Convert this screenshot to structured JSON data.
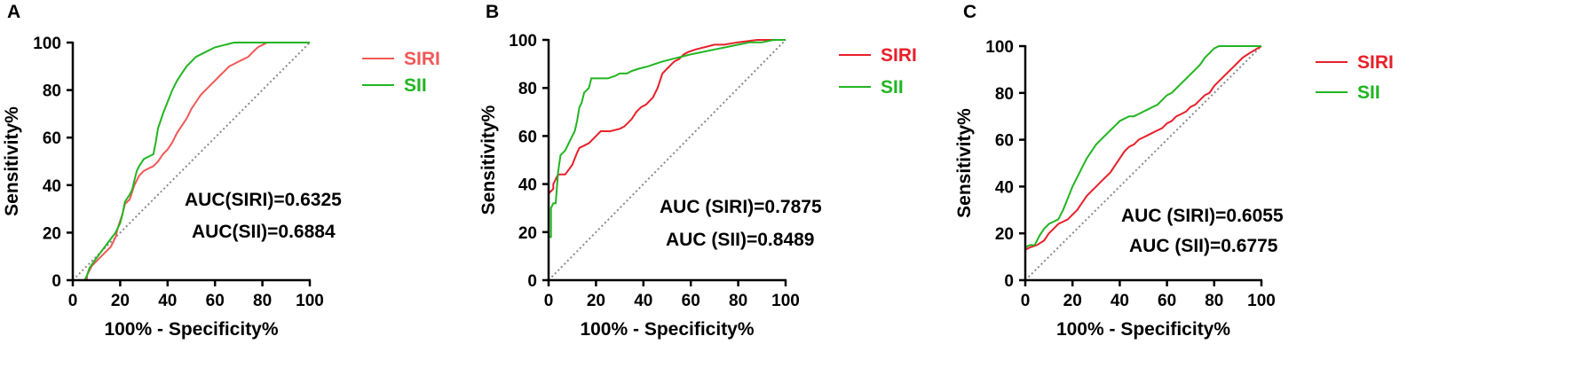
{
  "chart_data": [
    {
      "type": "line",
      "panel": "A",
      "xlabel": "100% - Specificity%",
      "ylabel": "Sensitivity%",
      "xlim": [
        0,
        100
      ],
      "ylim": [
        0,
        100
      ],
      "xticks": [
        0,
        20,
        40,
        60,
        80,
        100
      ],
      "yticks": [
        0,
        20,
        40,
        60,
        80,
        100
      ],
      "legend_position": "right",
      "reference_line": {
        "x": [
          0,
          100
        ],
        "y": [
          0,
          100
        ],
        "style": "dotted",
        "color": "#8a8a8a"
      },
      "series": [
        {
          "name": "SIRI",
          "color": "#f25757",
          "x": [
            0,
            6,
            6,
            7,
            8,
            10,
            12,
            14,
            16,
            18,
            19,
            20,
            21,
            22,
            24,
            25,
            26,
            28,
            30,
            32,
            34,
            36,
            38,
            40,
            42,
            44,
            46,
            48,
            50,
            52,
            54,
            56,
            58,
            60,
            62,
            64,
            66,
            68,
            70,
            72,
            74,
            76,
            78,
            80,
            82,
            84,
            100
          ],
          "y": [
            0,
            0,
            2,
            4,
            6,
            8,
            10,
            12,
            14,
            18,
            22,
            25,
            28,
            32,
            34,
            37,
            40,
            44,
            46,
            47,
            48,
            50,
            53,
            55,
            58,
            62,
            65,
            68,
            72,
            75,
            78,
            80,
            82,
            84,
            86,
            88,
            90,
            91,
            92,
            93,
            94,
            96,
            98,
            99,
            100,
            100,
            100
          ]
        },
        {
          "name": "SII",
          "color": "#22b522",
          "x": [
            0,
            5,
            6,
            7,
            9,
            12,
            15,
            18,
            20,
            21,
            22,
            24,
            25,
            26,
            27,
            28,
            30,
            32,
            34,
            35,
            36,
            38,
            40,
            42,
            44,
            46,
            48,
            50,
            52,
            54,
            56,
            58,
            60,
            64,
            68,
            72,
            80,
            100
          ],
          "y": [
            0,
            0,
            2,
            5,
            8,
            12,
            16,
            20,
            24,
            28,
            33,
            36,
            38,
            42,
            46,
            48,
            51,
            52,
            53,
            58,
            64,
            70,
            75,
            80,
            84,
            87,
            90,
            92,
            94,
            95,
            96,
            97,
            98,
            99,
            100,
            100,
            100,
            100
          ]
        }
      ],
      "annotations": [
        "AUC(SIRI)=0.6325",
        "AUC(SII)=0.6884"
      ]
    },
    {
      "type": "line",
      "panel": "B",
      "xlabel": "100% - Specificity%",
      "ylabel": "Sensitivity%",
      "xlim": [
        0,
        100
      ],
      "ylim": [
        0,
        100
      ],
      "xticks": [
        0,
        20,
        40,
        60,
        80,
        100
      ],
      "yticks": [
        0,
        20,
        40,
        60,
        80,
        100
      ],
      "legend_position": "right",
      "reference_line": {
        "x": [
          0,
          100
        ],
        "y": [
          0,
          100
        ],
        "style": "dotted",
        "color": "#8a8a8a"
      },
      "series": [
        {
          "name": "SIRI",
          "color": "#e8202a",
          "x": [
            0,
            0,
            2,
            2,
            4,
            7,
            10,
            12,
            13,
            15,
            17,
            20,
            22,
            26,
            30,
            32,
            35,
            37,
            39,
            41,
            44,
            46,
            48,
            50,
            52,
            53,
            55,
            57,
            59,
            62,
            66,
            70,
            74,
            80,
            88,
            100
          ],
          "y": [
            0,
            36,
            38,
            40,
            44,
            44,
            48,
            53,
            55,
            56,
            57,
            60,
            62,
            62,
            63,
            64,
            67,
            70,
            72,
            73,
            76,
            80,
            86,
            88,
            90,
            91,
            92,
            94,
            95,
            96,
            97,
            98,
            98,
            99,
            100,
            100
          ]
        },
        {
          "name": "SII",
          "color": "#22b522",
          "x": [
            0,
            0,
            1,
            1,
            2,
            3,
            4,
            5,
            6,
            7,
            9,
            11,
            12,
            13,
            14,
            15,
            17,
            18,
            20,
            22,
            25,
            28,
            30,
            33,
            35,
            38,
            42,
            45,
            48,
            52,
            56,
            60,
            65,
            70,
            75,
            80,
            85,
            90,
            95,
            100
          ],
          "y": [
            0,
            18,
            18,
            30,
            32,
            32,
            45,
            52,
            53,
            54,
            58,
            62,
            66,
            72,
            74,
            78,
            80,
            84,
            84,
            84,
            84,
            85,
            86,
            86,
            87,
            88,
            89,
            90,
            91,
            92,
            93,
            94,
            95,
            96,
            97,
            98,
            99,
            99,
            100,
            100
          ]
        }
      ],
      "annotations": [
        "AUC (SIRI)=0.7875",
        "AUC (SII)=0.8489"
      ]
    },
    {
      "type": "line",
      "panel": "C",
      "xlabel": "100% - Specificity%",
      "ylabel": "Sensitivity%",
      "xlim": [
        0,
        100
      ],
      "ylim": [
        0,
        100
      ],
      "xticks": [
        0,
        20,
        40,
        60,
        80,
        100
      ],
      "yticks": [
        0,
        20,
        40,
        60,
        80,
        100
      ],
      "legend_position": "right",
      "reference_line": {
        "x": [
          0,
          100
        ],
        "y": [
          0,
          100
        ],
        "style": "dotted",
        "color": "#8a8a8a"
      },
      "series": [
        {
          "name": "SIRI",
          "color": "#e8202a",
          "x": [
            0,
            0,
            2,
            5,
            8,
            10,
            12,
            14,
            16,
            18,
            20,
            22,
            24,
            26,
            28,
            30,
            32,
            34,
            36,
            38,
            40,
            42,
            44,
            46,
            48,
            50,
            52,
            54,
            56,
            58,
            60,
            62,
            64,
            66,
            68,
            70,
            72,
            74,
            76,
            78,
            80,
            82,
            84,
            86,
            88,
            90,
            92,
            95,
            100
          ],
          "y": [
            0,
            13,
            14,
            15,
            17,
            20,
            22,
            24,
            25,
            26,
            28,
            30,
            33,
            36,
            38,
            40,
            42,
            44,
            46,
            49,
            52,
            55,
            57,
            58,
            60,
            61,
            62,
            63,
            64,
            65,
            67,
            68,
            70,
            71,
            72,
            74,
            75,
            77,
            79,
            80,
            83,
            85,
            87,
            89,
            91,
            93,
            95,
            97,
            100
          ]
        },
        {
          "name": "SII",
          "color": "#22b522",
          "x": [
            0,
            0,
            2,
            4,
            6,
            8,
            10,
            12,
            14,
            16,
            18,
            20,
            22,
            24,
            26,
            28,
            30,
            32,
            34,
            36,
            38,
            40,
            42,
            44,
            46,
            48,
            50,
            52,
            54,
            56,
            58,
            60,
            62,
            64,
            66,
            68,
            70,
            72,
            74,
            76,
            78,
            80,
            82,
            84,
            100
          ],
          "y": [
            0,
            14,
            15,
            15,
            19,
            22,
            24,
            25,
            26,
            30,
            35,
            40,
            44,
            48,
            52,
            55,
            58,
            60,
            62,
            64,
            66,
            68,
            69,
            70,
            70,
            71,
            72,
            73,
            74,
            75,
            77,
            79,
            80,
            82,
            84,
            86,
            88,
            90,
            92,
            95,
            97,
            99,
            100,
            100,
            100
          ]
        }
      ],
      "annotations": [
        "AUC (SIRI)=0.6055",
        "AUC (SII)=0.6775"
      ]
    }
  ]
}
